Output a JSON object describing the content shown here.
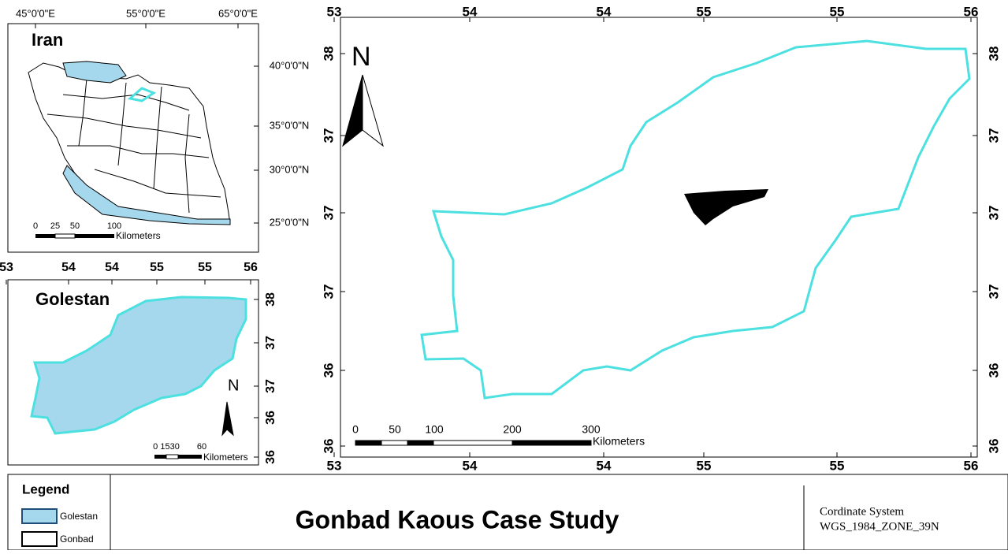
{
  "title": "Gonbad Kaous Case Study",
  "legend": {
    "title": "Legend",
    "items": [
      "Golestan",
      "Gonbad"
    ]
  },
  "coordinate_system": {
    "label": "Cordinate System",
    "value": "WGS_1984_ZONE_39N"
  },
  "iran_map": {
    "title": "Iran",
    "top_ticks": [
      "45°0'0\"E",
      "55°0'0\"E",
      "65°0'0\"E"
    ],
    "right_ticks": [
      "40°0'0\"N",
      "35°0'0\"N",
      "30°0'0\"N",
      "25°0'0\"N"
    ],
    "scale": {
      "labels": [
        "0",
        "25",
        "50",
        "100"
      ],
      "unit": "Kilometers"
    }
  },
  "golestan_map": {
    "title": "Golestan",
    "north": "N",
    "top_ticks": [
      "53",
      "54",
      "54",
      "55",
      "55",
      "56"
    ],
    "right_ticks": [
      "38",
      "37",
      "37",
      "36",
      "36"
    ],
    "scale": {
      "labels": [
        "0 1530",
        "60"
      ],
      "unit": "Kilometers"
    }
  },
  "main_map": {
    "north": "N",
    "top_ticks": [
      "53",
      "54",
      "54",
      "55",
      "55",
      "56"
    ],
    "bottom_ticks": [
      "53",
      "54",
      "54",
      "55",
      "55",
      "56"
    ],
    "left_ticks": [
      "38",
      "37",
      "37",
      "37",
      "36",
      "36"
    ],
    "right_ticks": [
      "38",
      "37",
      "37",
      "37",
      "36",
      "36"
    ],
    "scale": {
      "labels": [
        "0",
        "50",
        "100",
        "200",
        "300"
      ],
      "unit": "Kilometers"
    }
  }
}
